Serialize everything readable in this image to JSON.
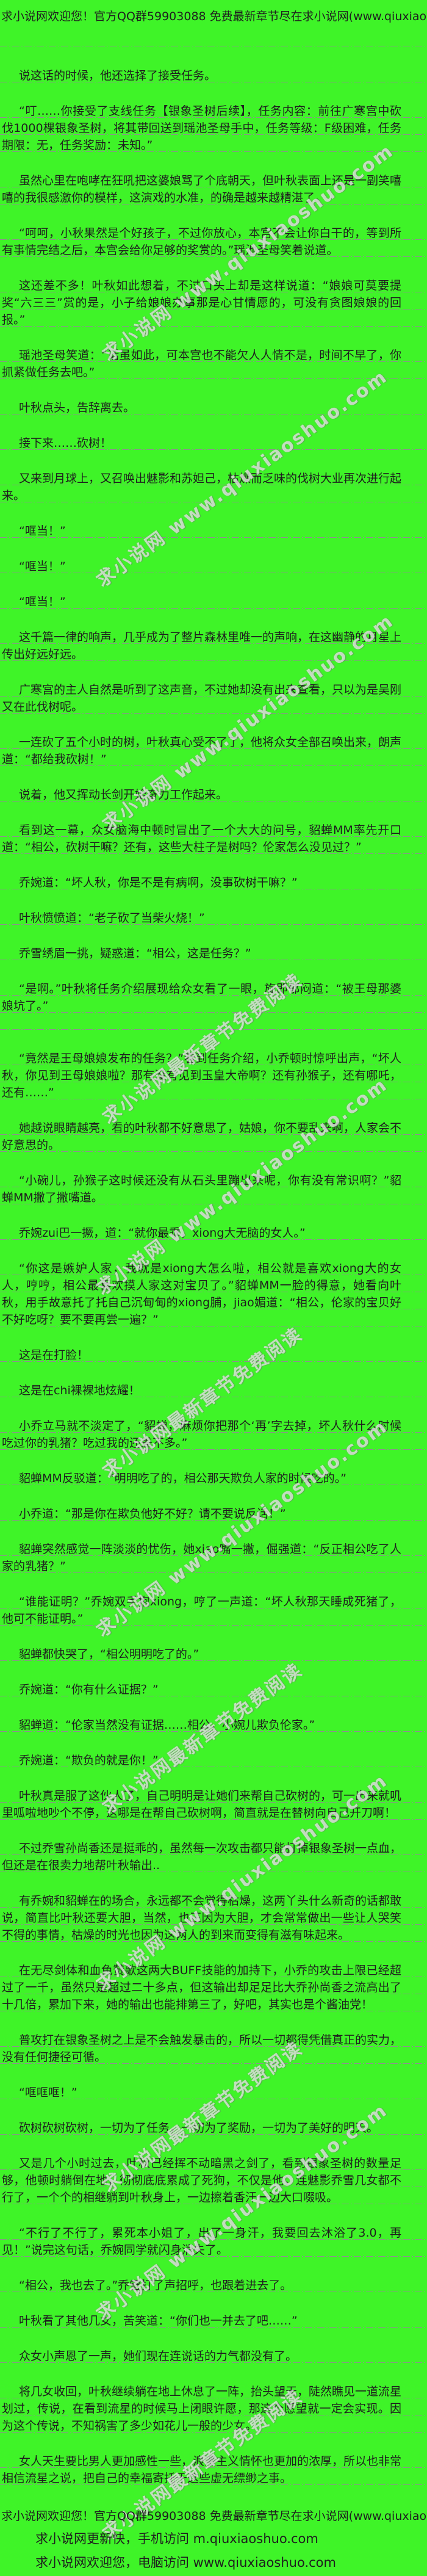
{
  "page": {
    "background_color": "#3FF428",
    "text_color": "#1E1E1E",
    "underline_color": "#8F8F8F",
    "watermark_color": "#E8E8E8"
  },
  "header": {
    "notice": "求小说网欢迎您！官方QQ群59903088 免费最新章节尽在求小说网(www.qiuxiaoshuo.com)"
  },
  "watermark": {
    "line_a": "求小说网 www.qiuxiaoshuo.com",
    "line_b": "求小说网最新章节免费阅读"
  },
  "content": {
    "extra_underline_after": [
      20
    ],
    "paragraphs": [
      "说这话的时候，他还选择了接受任务。",
      "“叮……你接受了支线任务【银象圣树后续】，任务内容：前往广寒宫中砍伐1000棵银象圣树，将其带回送到瑶池圣母手中，任务等级：F级困难，任务期限：无，任务奖励：未知。”",
      "虽然心里在咆哮在狂吼把这婆娘骂了个底朝天，但叶秋表面上还是一副笑嘻嘻的我很感激你的模样，这演戏的水准，的确是越来越精湛了。",
      "“呵呵，小秋果然是个好孩子，不过你放心，本宫不会让你白干的，等到所有事情完结之后，本宫会给你足够的奖赏的。”瑶池圣母笑着说道。",
      "这还差不多！叶秋如此想着，不过口头上却是这样说道：“娘娘可莫要提奖“六三三”赏的是，小子给娘娘办事那是心甘情愿的，可没有贪图娘娘的回报。”",
      "瑶池圣母笑道：“话虽如此，可本宫也不能欠人人情不是，时间不早了，你抓紧做任务去吧。”",
      "叶秋点头，告辞离去。",
      "接下来……砍树！",
      "又来到月球上，又召唤出魅影和苏妲己，枯燥而乏味的伐树大业再次进行起来。",
      "“哐当！”",
      "“哐当！”",
      "“哐当！”",
      "这千篇一律的响声，几乎成为了整片森林里唯一的声响，在这幽静的月星上传出好远好远。",
      "广寒宫的主人自然是听到了这声音，不过她却没有出来查看，只以为是吴刚又在此伐树呢。",
      "一连砍了五个小时的树，叶秋真心受不了了，他将众女全部召唤出来，朗声道：“都给我砍树！”",
      "说着，他又挥动长剑开始奋力工作起来。",
      "看到这一幕，众女脑海中顿时冒出了一个大大的问号，貂蝉MM率先开口道：“相公，砍树干嘛？还有，这些大柱子是树吗？伦家怎么没见过？”",
      "乔婉道：“坏人秋，你是不是有病啊，没事砍树干嘛？”",
      "叶秋愤愤道：“老子砍了当柴火烧！”",
      "乔雪绣眉一挑，疑惑道：“相公，这是任务？”",
      "“是啊。”叶秋将任务介绍展现给众女看了一眼，旋即郁闷道：“被王母那婆娘坑了。”",
      "“竟然是王母娘娘发布的任务？”看到任务介绍，小乔顿时惊呼出声，“坏人秋，你见到王母娘娘啦？那有没有见到玉皇大帝啊？还有孙猴子，还有哪吒，还有……”",
      "她越说眼睛越亮，看的叶秋都不好意思了，姑娘，你不要乱来啊，人家会不好意思的。",
      "“小碗儿，孙猴子这时候还没有从石头里蹦出来呢，你有没有常识啊？”貂蝉MM撇了撇嘴道。",
      "乔婉zui巴一撅，道：“就你最乖，xiong大无脑的女人。”",
      "“你这是嫉妒人家，我就是xiong大怎么啦，相公就是喜欢xiong大的女人，哼哼，相公最喜欢摸人家这对宝贝了。”貂蝉MM一脸的得意，她看向叶秋，用手故意托了托自己沉甸甸的xiong脯，jiao媚道：“相公，伦家的宝贝好不好吃呀？要不要再尝一遍？”",
      "这是在打脸！",
      "这是在chi裸裸地炫耀！",
      "小乔立马就不淡定了，“貂蝉，麻烦你把那个‘再’字去掉，坏人秋什么时候吃过你的乳猪？吃过我的还差不多。”",
      "貂蝉MM反驳道：“明明吃了的，相公那天欺负人家的时候吃的。”",
      "小乔道：“那是你在欺负他好不好？请不要说反话！”",
      "貂蝉突然感觉一阵淡淡的忧伤，她xiao嘴一撇，倔强道：“反正相公吃了人家的乳猪？”",
      "“谁能证明？”乔婉双手抱xiong，哼了一声道：“坏人秋那天睡成死猪了，他可不能证明。”",
      "貂蝉都快哭了，“相公明明吃了的。”",
      "乔婉道：“你有什么证据？”",
      "貂蝉道：“伦家当然没有证据……相公，小婉儿欺负伦家。”",
      "乔婉道：“欺负的就是你！”",
      "叶秋真是服了这伙人了，自己明明是让她们来帮自己砍树的，可一出来就叽里呱啦地吵个不停，这哪是在帮自己砍树啊，简直就是在替树向自己开刀啊！",
      "不过乔雪孙尚香还是挺乖的，虽然每一次攻击都只能打掉银象圣树一点血，但还是在很卖力地帮叶秋输出..",
      "有乔婉和貂蝉在的场合，永远都不会觉得枯燥，这两丫头什么新奇的话都敢说，简直比叶秋还要大胆，当然，也正因为大胆，才会常常做出一些让人哭笑不得的事情，枯燥的时光也因为这两人的到来而变得有滋有味起来。",
      "在无尽剑体和血色赞歌这两大BUFF技能的加持下，小乔的攻击上限已经超过了一千，虽然只是超过二十多点，但这输出却足足比大乔孙尚香之流高出了十几倍，累加下来，她的输出也能排第三了，好吧，其实也是个酱油党！",
      "普攻打在银象圣树之上是不会触发暴击的，所以一切都得凭借真正的实力，没有任何捷径可循。",
      "“哐哐哐！”",
      "砍树砍树砍树，一切为了任务，一切为了奖励，一切为了美好的明天。",
      "又是几个小时过去，叶秋已经挥不动暗黑之剑了，看到银象圣树的数量足够，他顿时躺倒在地，彻彻底底累成了死狗，不仅是他，连魅影乔雪几女都不行了，一个个的相继躺到叶秋身上，一边擦着香汗一边大口啜吸。",
      "“不行了不行了，累死本小姐了，出了一身汗，我要回去沐浴了3.0，再见！”说完这句话，乔婉同学就闪身消失了。",
      "“相公，我也去了。”乔雪打了声招呼，也跟着进去了。",
      "叶秋看了其他几女，苦笑道：“你们也一并去了吧……”",
      "众女小声恩了一声，她们现在连说话的力气都没有了。",
      "将几女收回，叶秋继续躺在地上休息了一阵，抬头望天，陡然瞧见一道流星划过，传说，在看到流星的时候马上闭眼许愿，那这个愿望就一定会实现。因为这个传说，不知祸害了多少如花儿一般的少女。",
      "女人天生要比男人更加感性一些，浪漫主义情怀也更加的浓厚，所以也非常相信流星之说，把自己的幸福寄托于这些虚无缥缈之事。"
    ]
  },
  "footer": {
    "notice": "求小说网欢迎您！官方QQ群59903088 免费最新章节尽在求小说网(www.qiuxiaoshuo.com)",
    "mobile": "求小说网更新快，手机访问 m.qiuxiaoshuo.com",
    "pc": "求小说网欢迎您，电脑访问 www.qiuxiaoshuo.com"
  }
}
